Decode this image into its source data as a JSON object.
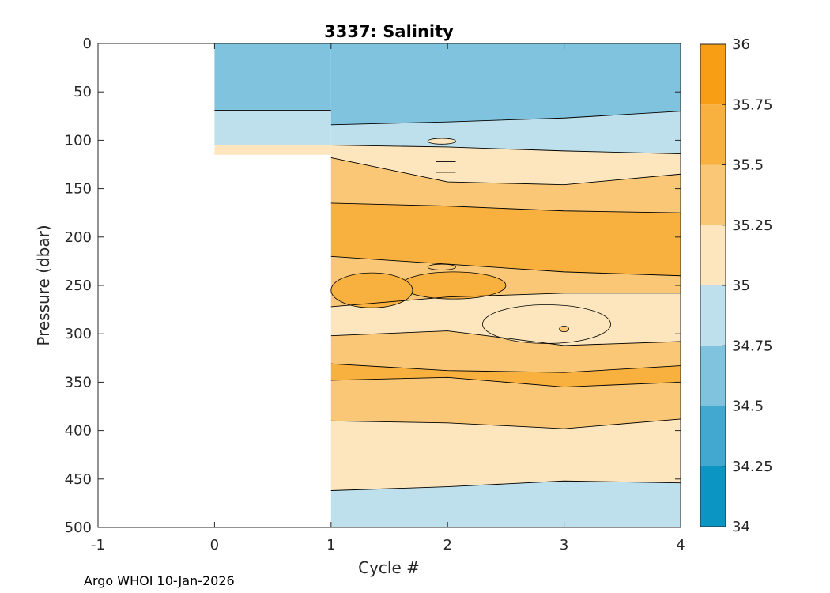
{
  "chart_data": {
    "type": "contour",
    "title": "3337:  Salinity",
    "xlabel": "Cycle #",
    "ylabel": "Pressure (dbar)",
    "xlim": [
      -1,
      4
    ],
    "ylim": [
      0,
      500
    ],
    "x_ticks": [
      "-1",
      "0",
      "1",
      "2",
      "3",
      "4"
    ],
    "y_ticks": [
      "0",
      "50",
      "100",
      "150",
      "200",
      "250",
      "300",
      "350",
      "400",
      "450",
      "500"
    ],
    "colorbar": {
      "levels": [
        34,
        34.25,
        34.5,
        34.75,
        35,
        35.25,
        35.5,
        35.75,
        36
      ],
      "tick_labels": [
        "34",
        "34.25",
        "34.5",
        "34.75",
        "35",
        "35.25",
        "35.5",
        "35.75",
        "36"
      ],
      "colors": [
        "#0a95c2",
        "#42a8d0",
        "#7fc3df",
        "#bde0ec",
        "#fde6bd",
        "#f9c775",
        "#f8b13f",
        "#f79e14"
      ]
    },
    "cycle_0_column": {
      "x_range": [
        0,
        1
      ],
      "pressure_range": [
        0,
        115
      ],
      "bands": [
        {
          "from": 0,
          "to": 69,
          "range": "34.5-34.75"
        },
        {
          "from": 69,
          "to": 105,
          "range": "34.75-35"
        },
        {
          "from": 105,
          "to": 115,
          "range": "35-35.25"
        }
      ]
    },
    "contours": [
      {
        "level": 34.75,
        "x": [
          1,
          2,
          3,
          4
        ],
        "pressure": [
          84,
          81,
          77,
          70
        ]
      },
      {
        "level": 35,
        "x": [
          1,
          2,
          3,
          4
        ],
        "pressure": [
          105,
          107,
          111,
          114
        ]
      },
      {
        "level": 35.25,
        "x": [
          1,
          2,
          3,
          4
        ],
        "pressure": [
          118,
          143,
          146,
          135
        ]
      },
      {
        "level": 35.5,
        "x": [
          1,
          2,
          3,
          4
        ],
        "pressure": [
          165,
          168,
          173,
          175
        ]
      },
      {
        "level": 35.5,
        "x": [
          1,
          2,
          3,
          4
        ],
        "pressure": [
          220,
          228,
          236,
          240
        ]
      },
      {
        "level": 35.25,
        "x": [
          1,
          2,
          3,
          4
        ],
        "pressure": [
          272,
          262,
          258,
          258
        ]
      },
      {
        "level": 35.25,
        "x": [
          1,
          2,
          3,
          4
        ],
        "pressure": [
          302,
          297,
          312,
          308
        ]
      },
      {
        "level": 35.5,
        "x": [
          1,
          2,
          3,
          4
        ],
        "pressure": [
          331,
          338,
          340,
          333
        ]
      },
      {
        "level": 35.5,
        "x": [
          1,
          2,
          3,
          4
        ],
        "pressure": [
          348,
          345,
          355,
          350
        ]
      },
      {
        "level": 35.25,
        "x": [
          1,
          2,
          3,
          4
        ],
        "pressure": [
          390,
          392,
          398,
          388
        ]
      },
      {
        "level": 35,
        "x": [
          1,
          2,
          3,
          4
        ],
        "pressure": [
          462,
          458,
          452,
          454
        ]
      }
    ],
    "cell_values": [
      {
        "x": 1.5,
        "pressure": 30,
        "value": 34.6
      },
      {
        "x": 1.5,
        "pressure": 95,
        "value": 34.9
      },
      {
        "x": 1.5,
        "pressure": 140,
        "value": 35.1
      },
      {
        "x": 1.5,
        "pressure": 200,
        "value": 35.6
      },
      {
        "x": 1.5,
        "pressure": 300,
        "value": 35.1
      },
      {
        "x": 1.5,
        "pressure": 340,
        "value": 35.6
      },
      {
        "x": 1.5,
        "pressure": 420,
        "value": 35.1
      },
      {
        "x": 1.5,
        "pressure": 480,
        "value": 34.9
      }
    ]
  },
  "footer": "Argo WHOI 10-Jan-2026"
}
